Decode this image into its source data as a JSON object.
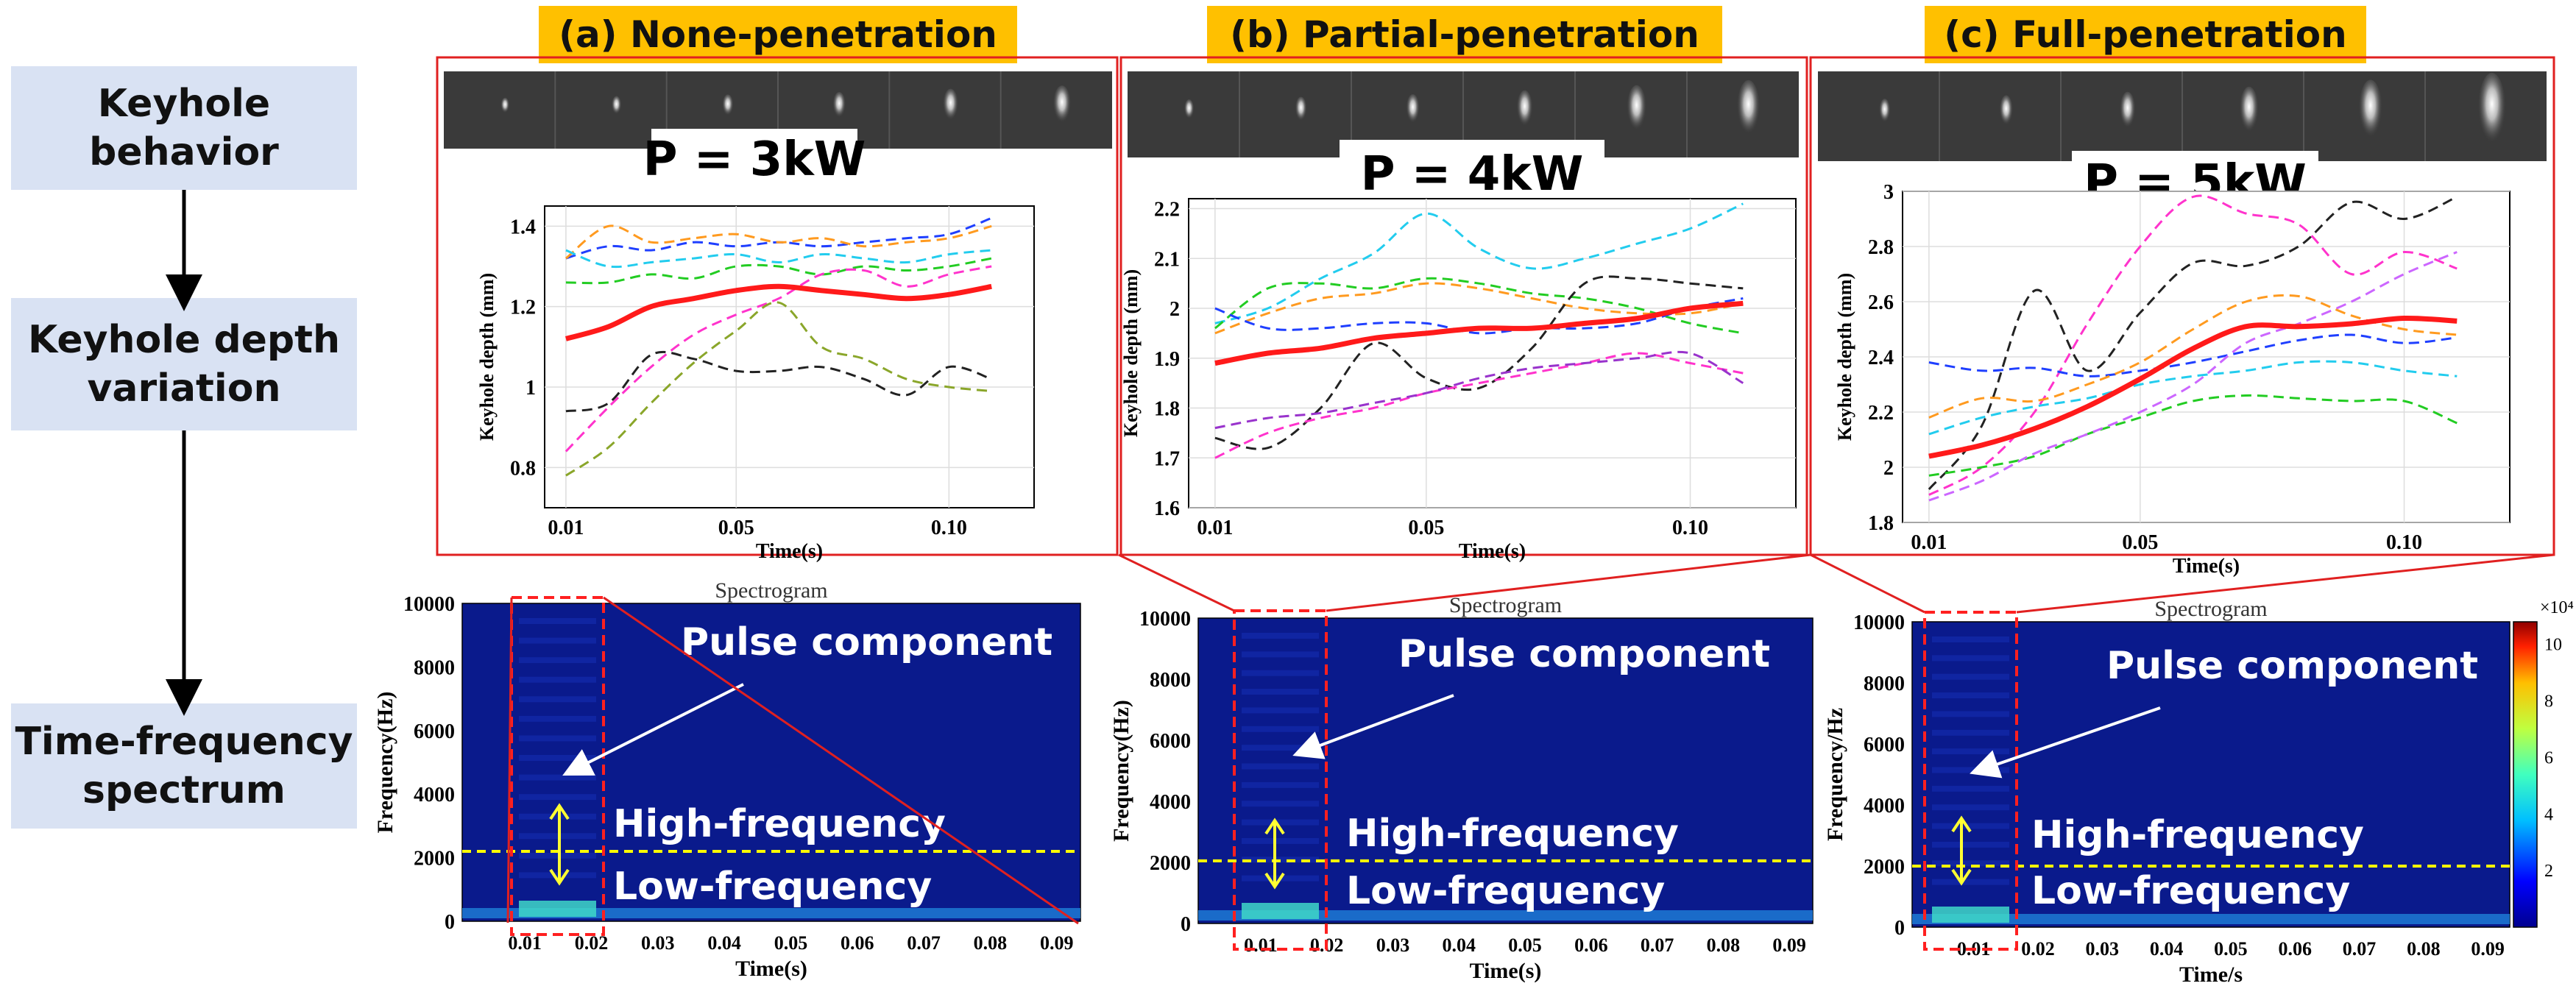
{
  "left_flow": {
    "steps": [
      {
        "line1": "Keyhole",
        "line2": "behavior"
      },
      {
        "line1": "Keyhole depth",
        "line2": "variation"
      },
      {
        "line1": "Time-frequency",
        "line2": "spectrum"
      }
    ]
  },
  "colors": {
    "tag_bg": "#ffc000",
    "box_bg": "#d9e2f3",
    "frame": "#e02020",
    "mean_line": "#ff1a1a",
    "spec_bg": "#0a1a8c",
    "divider": "#ffff00",
    "arrow": "#ffff33"
  },
  "panels": [
    {
      "tag": "(a) None-penetration",
      "power": "P = 3kW",
      "chart_data": {
        "type": "line",
        "ylabel": "Keyhole depth (mm)",
        "xlabel": "Time(s)",
        "xlim": [
          0.005,
          0.12
        ],
        "ylim": [
          0.7,
          1.45
        ],
        "xticks": [
          0.01,
          0.05,
          0.1
        ],
        "xtick_labels": [
          "0.01",
          "0.05",
          "0.10"
        ],
        "yticks": [
          0.8,
          1.0,
          1.2,
          1.4
        ],
        "ytick_labels": [
          "0.8",
          "1",
          "1.2",
          "1.4"
        ],
        "x": [
          0.01,
          0.02,
          0.03,
          0.04,
          0.05,
          0.06,
          0.07,
          0.08,
          0.09,
          0.1,
          0.11
        ],
        "mean": {
          "name": "mean",
          "values": [
            1.12,
            1.15,
            1.2,
            1.22,
            1.24,
            1.25,
            1.24,
            1.23,
            1.22,
            1.23,
            1.25
          ]
        },
        "series": [
          {
            "name": "run-1",
            "color": "#1f3fff",
            "values": [
              1.32,
              1.35,
              1.34,
              1.36,
              1.35,
              1.36,
              1.35,
              1.36,
              1.37,
              1.38,
              1.42
            ]
          },
          {
            "name": "run-2",
            "color": "#ff9a1f",
            "values": [
              1.32,
              1.4,
              1.36,
              1.37,
              1.38,
              1.36,
              1.37,
              1.35,
              1.36,
              1.37,
              1.4
            ]
          },
          {
            "name": "run-3",
            "color": "#22cc22",
            "values": [
              1.26,
              1.26,
              1.28,
              1.27,
              1.3,
              1.3,
              1.28,
              1.3,
              1.29,
              1.3,
              1.32
            ]
          },
          {
            "name": "run-4",
            "color": "#ff33cc",
            "values": [
              0.84,
              0.95,
              1.05,
              1.13,
              1.18,
              1.22,
              1.28,
              1.29,
              1.25,
              1.28,
              1.3
            ]
          },
          {
            "name": "run-5",
            "color": "#222222",
            "values": [
              0.94,
              0.96,
              1.08,
              1.07,
              1.04,
              1.04,
              1.05,
              1.02,
              0.98,
              1.05,
              1.02
            ]
          },
          {
            "name": "run-6",
            "color": "#8aa62a",
            "values": [
              0.78,
              0.85,
              0.96,
              1.06,
              1.14,
              1.21,
              1.1,
              1.07,
              1.02,
              1.0,
              0.99
            ]
          },
          {
            "name": "run-7",
            "color": "#22ccee",
            "values": [
              1.34,
              1.3,
              1.31,
              1.32,
              1.33,
              1.31,
              1.33,
              1.32,
              1.31,
              1.33,
              1.34
            ]
          }
        ]
      },
      "spectrogram": {
        "title": "Spectrogram",
        "ylabel": "Frequency(Hz)",
        "xlabel": "Time(s)",
        "yticks": [
          "0",
          "2000",
          "4000",
          "6000",
          "8000",
          "10000"
        ],
        "xticks": [
          "0.01",
          "0.02",
          "0.03",
          "0.04",
          "0.05",
          "0.06",
          "0.07",
          "0.08",
          "0.09"
        ],
        "pulse": "Pulse component",
        "high": "High-frequency",
        "low": "Low-frequency",
        "divider_hz": 2200
      }
    },
    {
      "tag": "(b) Partial-penetration",
      "power": "P = 4kW",
      "chart_data": {
        "type": "line",
        "ylabel": "Keyhole depth (mm)",
        "xlabel": "Time(s)",
        "xlim": [
          0.005,
          0.12
        ],
        "ylim": [
          1.6,
          2.22
        ],
        "xticks": [
          0.01,
          0.05,
          0.1
        ],
        "xtick_labels": [
          "0.01",
          "0.05",
          "0.10"
        ],
        "yticks": [
          1.6,
          1.7,
          1.8,
          1.9,
          2.0,
          2.1,
          2.2
        ],
        "ytick_labels": [
          "1.6",
          "1.7",
          "1.8",
          "1.9",
          "2",
          "2.1",
          "2.2"
        ],
        "x": [
          0.01,
          0.02,
          0.03,
          0.04,
          0.05,
          0.06,
          0.07,
          0.08,
          0.09,
          0.1,
          0.11
        ],
        "mean": {
          "name": "mean",
          "values": [
            1.89,
            1.91,
            1.92,
            1.94,
            1.95,
            1.96,
            1.96,
            1.97,
            1.98,
            2.0,
            2.01
          ]
        },
        "series": [
          {
            "name": "run-1",
            "color": "#22ccee",
            "values": [
              1.97,
              2.0,
              2.06,
              2.11,
              2.19,
              2.12,
              2.08,
              2.1,
              2.13,
              2.16,
              2.21
            ]
          },
          {
            "name": "run-2",
            "color": "#22cc22",
            "values": [
              1.96,
              2.04,
              2.05,
              2.04,
              2.06,
              2.05,
              2.03,
              2.02,
              2.0,
              1.97,
              1.95
            ]
          },
          {
            "name": "run-3",
            "color": "#ff9a1f",
            "values": [
              1.95,
              1.99,
              2.02,
              2.03,
              2.05,
              2.04,
              2.02,
              2.0,
              1.99,
              1.99,
              2.01
            ]
          },
          {
            "name": "run-4",
            "color": "#1f3fff",
            "values": [
              2.0,
              1.96,
              1.96,
              1.97,
              1.97,
              1.95,
              1.96,
              1.96,
              1.97,
              2.0,
              2.02
            ]
          },
          {
            "name": "run-5",
            "color": "#222222",
            "values": [
              1.74,
              1.72,
              1.8,
              1.93,
              1.86,
              1.84,
              1.92,
              2.05,
              2.06,
              2.05,
              2.04
            ]
          },
          {
            "name": "run-6",
            "color": "#ff33cc",
            "values": [
              1.7,
              1.75,
              1.78,
              1.8,
              1.83,
              1.85,
              1.87,
              1.89,
              1.91,
              1.89,
              1.87
            ]
          },
          {
            "name": "run-7",
            "color": "#9933cc",
            "values": [
              1.76,
              1.78,
              1.79,
              1.81,
              1.83,
              1.86,
              1.88,
              1.89,
              1.9,
              1.91,
              1.85
            ]
          }
        ]
      },
      "spectrogram": {
        "title": "Spectrogram",
        "ylabel": "Frequency(Hz)",
        "xlabel": "Time(s)",
        "yticks": [
          "0",
          "2000",
          "4000",
          "6000",
          "8000",
          "10000"
        ],
        "xticks": [
          "0.01",
          "0.02",
          "0.03",
          "0.04",
          "0.05",
          "0.06",
          "0.07",
          "0.08",
          "0.09"
        ],
        "pulse": "Pulse component",
        "high": "High-frequency",
        "low": "Low-frequency",
        "divider_hz": 2050
      }
    },
    {
      "tag": "(c) Full-penetration",
      "power": "P = 5kW",
      "chart_data": {
        "type": "line",
        "ylabel": "Keyhole depth (mm)",
        "xlabel": "Time(s)",
        "xlim": [
          0.005,
          0.12
        ],
        "ylim": [
          1.8,
          3.0
        ],
        "xticks": [
          0.01,
          0.05,
          0.1
        ],
        "xtick_labels": [
          "0.01",
          "0.05",
          "0.10"
        ],
        "yticks": [
          1.8,
          2.0,
          2.2,
          2.4,
          2.6,
          2.8,
          3.0
        ],
        "ytick_labels": [
          "1.8",
          "2",
          "2.2",
          "2.4",
          "2.6",
          "2.8",
          "3"
        ],
        "x": [
          0.01,
          0.02,
          0.03,
          0.04,
          0.05,
          0.06,
          0.07,
          0.08,
          0.09,
          0.1,
          0.11
        ],
        "mean": {
          "name": "mean",
          "values": [
            2.04,
            2.08,
            2.14,
            2.22,
            2.32,
            2.43,
            2.51,
            2.51,
            2.52,
            2.54,
            2.53
          ]
        },
        "series": [
          {
            "name": "run-1",
            "color": "#222222",
            "values": [
              1.92,
              2.15,
              2.64,
              2.35,
              2.56,
              2.74,
              2.73,
              2.8,
              2.96,
              2.9,
              2.98
            ]
          },
          {
            "name": "run-2",
            "color": "#ff33cc",
            "values": [
              1.9,
              2.0,
              2.2,
              2.52,
              2.8,
              2.98,
              2.92,
              2.88,
              2.7,
              2.78,
              2.72
            ]
          },
          {
            "name": "run-3",
            "color": "#1f3fff",
            "values": [
              2.38,
              2.35,
              2.36,
              2.33,
              2.35,
              2.38,
              2.42,
              2.46,
              2.48,
              2.45,
              2.47
            ]
          },
          {
            "name": "run-4",
            "color": "#ff9a1f",
            "values": [
              2.18,
              2.25,
              2.24,
              2.3,
              2.38,
              2.5,
              2.6,
              2.62,
              2.55,
              2.5,
              2.48
            ]
          },
          {
            "name": "run-5",
            "color": "#22ccee",
            "values": [
              2.12,
              2.18,
              2.22,
              2.25,
              2.3,
              2.33,
              2.35,
              2.38,
              2.38,
              2.35,
              2.33
            ]
          },
          {
            "name": "run-6",
            "color": "#22cc22",
            "values": [
              1.97,
              2.0,
              2.04,
              2.12,
              2.18,
              2.24,
              2.26,
              2.25,
              2.24,
              2.24,
              2.16
            ]
          },
          {
            "name": "run-7",
            "color": "#cc66ff",
            "values": [
              1.88,
              1.95,
              2.05,
              2.12,
              2.2,
              2.3,
              2.45,
              2.52,
              2.6,
              2.7,
              2.78
            ]
          }
        ]
      },
      "spectrogram": {
        "title": "Spectrogram",
        "ylabel": "Frequency/Hz",
        "xlabel": "Time/s",
        "yticks": [
          "0",
          "2000",
          "4000",
          "6000",
          "8000",
          "10000"
        ],
        "xticks": [
          "0.01",
          "0.02",
          "0.03",
          "0.04",
          "0.05",
          "0.06",
          "0.07",
          "0.08",
          "0.09"
        ],
        "pulse": "Pulse component",
        "high": "High-frequency",
        "low": "Low-frequency",
        "divider_hz": 2000,
        "colorbar": {
          "exponent": "×10⁴",
          "ticks": [
            "2",
            "4",
            "6",
            "8",
            "10"
          ]
        }
      }
    }
  ]
}
